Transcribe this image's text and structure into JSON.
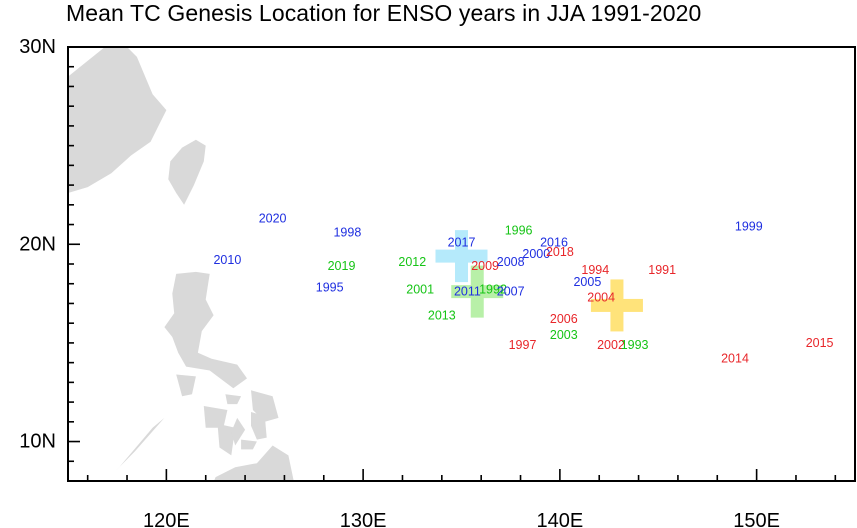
{
  "title": "Mean TC Genesis Location for ENSO years in JJA 1991-2020",
  "colors": {
    "el_nino": "#e8262a",
    "la_nina": "#1f2fe0",
    "neutral": "#16c416",
    "mean_el_nino": "#ffe37a",
    "mean_la_nina": "#b5eafb",
    "mean_neutral": "#b8f0a8",
    "land": "#d9d9d9"
  },
  "chart_data": {
    "type": "scatter",
    "xlim": [
      115,
      155
    ],
    "ylim": [
      8,
      30
    ],
    "x_ticks": [
      120,
      130,
      140,
      150
    ],
    "x_tick_labels": [
      "120E",
      "130E",
      "140E",
      "150E"
    ],
    "y_ticks": [
      10,
      20,
      30
    ],
    "y_tick_labels": [
      "10N",
      "20N",
      "30N"
    ],
    "points": [
      {
        "label": "2020",
        "lon": 125.4,
        "lat": 21.3,
        "cat": "la_nina"
      },
      {
        "label": "1998",
        "lon": 129.2,
        "lat": 20.6,
        "cat": "la_nina"
      },
      {
        "label": "2010",
        "lon": 123.1,
        "lat": 19.2,
        "cat": "la_nina"
      },
      {
        "label": "2019",
        "lon": 128.9,
        "lat": 18.9,
        "cat": "neutral"
      },
      {
        "label": "1995",
        "lon": 128.3,
        "lat": 17.8,
        "cat": "la_nina"
      },
      {
        "label": "2012",
        "lon": 132.5,
        "lat": 19.1,
        "cat": "neutral"
      },
      {
        "label": "2001",
        "lon": 132.9,
        "lat": 17.7,
        "cat": "neutral"
      },
      {
        "label": "2013",
        "lon": 134.0,
        "lat": 16.4,
        "cat": "neutral"
      },
      {
        "label": "2017",
        "lon": 135.0,
        "lat": 20.1,
        "cat": "la_nina"
      },
      {
        "label": "2009",
        "lon": 136.2,
        "lat": 18.9,
        "cat": "el_nino"
      },
      {
        "label": "2011",
        "lon": 135.3,
        "lat": 17.6,
        "cat": "la_nina"
      },
      {
        "label": "1992",
        "lon": 136.6,
        "lat": 17.7,
        "cat": "neutral"
      },
      {
        "label": "2007",
        "lon": 137.5,
        "lat": 17.6,
        "cat": "la_nina"
      },
      {
        "label": "1996",
        "lon": 137.9,
        "lat": 20.7,
        "cat": "neutral"
      },
      {
        "label": "2016",
        "lon": 139.7,
        "lat": 20.1,
        "cat": "la_nina"
      },
      {
        "label": "2000",
        "lon": 138.8,
        "lat": 19.5,
        "cat": "la_nina"
      },
      {
        "label": "2018",
        "lon": 140.0,
        "lat": 19.6,
        "cat": "el_nino"
      },
      {
        "label": "2008",
        "lon": 137.5,
        "lat": 19.1,
        "cat": "la_nina"
      },
      {
        "label": "1994",
        "lon": 141.8,
        "lat": 18.7,
        "cat": "el_nino"
      },
      {
        "label": "1991",
        "lon": 145.2,
        "lat": 18.7,
        "cat": "el_nino"
      },
      {
        "label": "2005",
        "lon": 141.4,
        "lat": 18.1,
        "cat": "la_nina"
      },
      {
        "label": "2004",
        "lon": 142.1,
        "lat": 17.3,
        "cat": "el_nino"
      },
      {
        "label": "2006",
        "lon": 140.2,
        "lat": 16.2,
        "cat": "el_nino"
      },
      {
        "label": "2003",
        "lon": 140.2,
        "lat": 15.4,
        "cat": "neutral"
      },
      {
        "label": "1997",
        "lon": 138.1,
        "lat": 14.9,
        "cat": "el_nino"
      },
      {
        "label": "2002",
        "lon": 142.6,
        "lat": 14.9,
        "cat": "el_nino"
      },
      {
        "label": "1993",
        "lon": 143.8,
        "lat": 14.9,
        "cat": "neutral"
      },
      {
        "label": "1999",
        "lon": 149.6,
        "lat": 20.9,
        "cat": "la_nina"
      },
      {
        "label": "2014",
        "lon": 148.9,
        "lat": 14.2,
        "cat": "el_nino"
      },
      {
        "label": "2015",
        "lon": 153.2,
        "lat": 15.0,
        "cat": "el_nino"
      }
    ],
    "means": [
      {
        "cat": "mean_la_nina",
        "lon": 135.0,
        "lat": 19.4
      },
      {
        "cat": "mean_neutral",
        "lon": 135.8,
        "lat": 17.6
      },
      {
        "cat": "mean_el_nino",
        "lon": 142.9,
        "lat": 16.9
      }
    ]
  }
}
